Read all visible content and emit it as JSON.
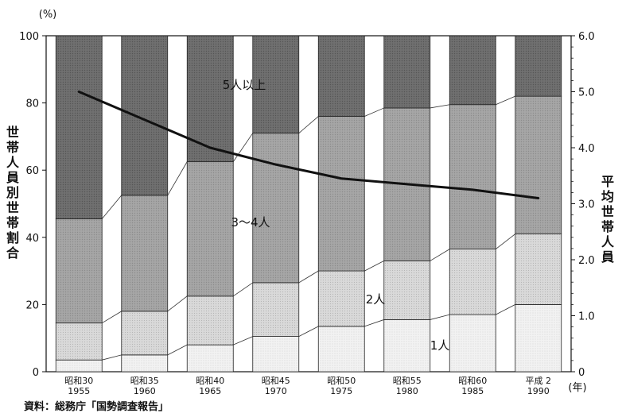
{
  "chart_data": {
    "type": "bar",
    "stacked": true,
    "categories": [
      [
        "昭和30",
        "1955"
      ],
      [
        "昭和35",
        "1960"
      ],
      [
        "昭和40",
        "1965"
      ],
      [
        "昭和45",
        "1970"
      ],
      [
        "昭和50",
        "1975"
      ],
      [
        "昭和55",
        "1980"
      ],
      [
        "昭和60",
        "1985"
      ],
      [
        "平成 2",
        "1990"
      ]
    ],
    "series": [
      {
        "name": "1人",
        "values": [
          3.5,
          5.0,
          8.0,
          10.5,
          13.5,
          15.5,
          17.0,
          20.0
        ],
        "color": "#f0f0f0"
      },
      {
        "name": "2人",
        "values": [
          11.0,
          13.0,
          14.5,
          16.0,
          16.5,
          17.5,
          19.5,
          21.0
        ],
        "color": "#d8d8d8"
      },
      {
        "name": "3～4人",
        "values": [
          31.0,
          34.5,
          40.0,
          44.5,
          46.0,
          45.5,
          43.0,
          41.0
        ],
        "color": "#a3a3a3"
      },
      {
        "name": "5人以上",
        "values": [
          54.5,
          47.5,
          37.5,
          29.0,
          24.0,
          21.5,
          20.5,
          18.0
        ],
        "color": "#6e6e6e"
      }
    ],
    "line": {
      "name": "平均世帯人員",
      "values": [
        5.0,
        4.5,
        4.0,
        3.7,
        3.45,
        3.35,
        3.25,
        3.1
      ],
      "color": "#111111"
    },
    "ylabel": "世帯人員別世帯割合",
    "y2label": "平均世帯人員",
    "yunit": "(%)",
    "xunit": "(年)",
    "ylim": [
      0,
      100
    ],
    "y2lim": [
      0,
      6.0
    ],
    "yticks": [
      "0",
      "20",
      "40",
      "60",
      "80",
      "100"
    ],
    "y2ticks": [
      "0",
      "1.0",
      "2.0",
      "3.0",
      "4.0",
      "5.0",
      "6.0"
    ],
    "segment_labels": [
      "5人以上",
      "3～4人",
      "2人",
      "1人"
    ],
    "source": "資料：総務庁「国勢調査報告」"
  }
}
